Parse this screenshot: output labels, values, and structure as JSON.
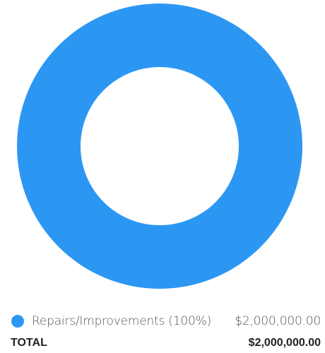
{
  "chart_data": {
    "type": "pie",
    "variant": "donut",
    "categories": [
      "Repairs/Improvements"
    ],
    "series": [
      {
        "values": [
          2000000
        ],
        "colors": [
          "#2c97f3"
        ]
      }
    ],
    "legend": [
      {
        "label": "Repairs/Improvements (100%)",
        "amount": "$2,000,000.00",
        "color": "#2c97f3",
        "percent": 100
      }
    ],
    "legend_position": "bottom"
  },
  "total": {
    "label": "TOTAL",
    "amount": "$2,000,000.00"
  }
}
